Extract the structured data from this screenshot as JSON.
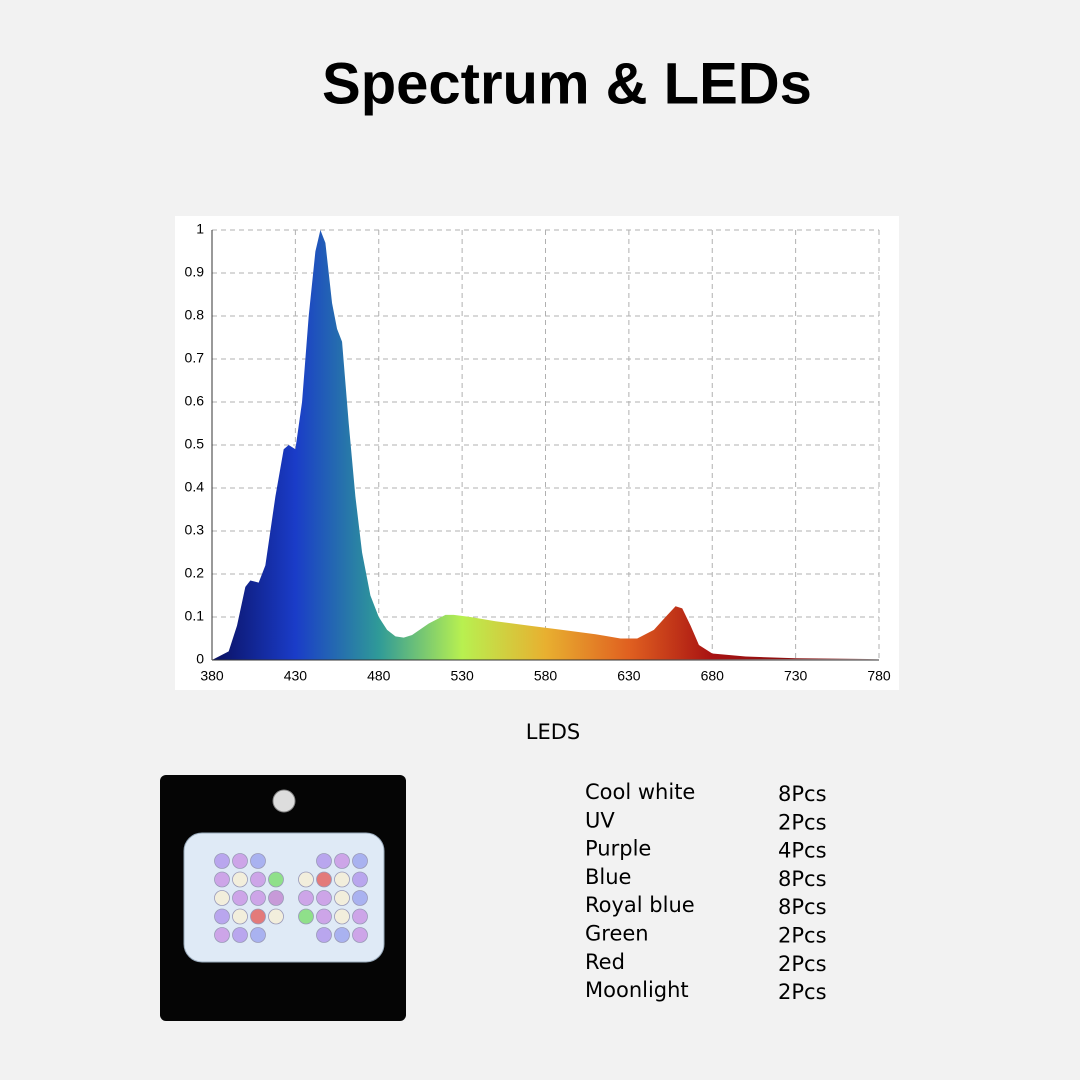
{
  "title": "Spectrum & LEDs",
  "chart_data": {
    "type": "area",
    "x": [
      380,
      390,
      395,
      400,
      403,
      408,
      412,
      418,
      423,
      426,
      430,
      434,
      438,
      442,
      445,
      448,
      452,
      455,
      458,
      462,
      466,
      470,
      475,
      480,
      485,
      490,
      495,
      500,
      510,
      520,
      525,
      535,
      550,
      570,
      590,
      610,
      625,
      635,
      645,
      652,
      658,
      662,
      667,
      672,
      680,
      700,
      730,
      780
    ],
    "values": [
      0,
      0.02,
      0.08,
      0.17,
      0.185,
      0.18,
      0.22,
      0.38,
      0.49,
      0.5,
      0.49,
      0.6,
      0.8,
      0.95,
      1,
      0.97,
      0.83,
      0.77,
      0.74,
      0.55,
      0.38,
      0.25,
      0.15,
      0.1,
      0.07,
      0.055,
      0.052,
      0.058,
      0.085,
      0.105,
      0.105,
      0.1,
      0.09,
      0.08,
      0.07,
      0.06,
      0.05,
      0.05,
      0.07,
      0.1,
      0.125,
      0.12,
      0.08,
      0.035,
      0.015,
      0.008,
      0.004,
      0.002
    ],
    "gradient_colors": [
      "#0a1060",
      "#1a3cc8",
      "#2f9a98",
      "#b8f050",
      "#e8b030",
      "#e06020",
      "#a81212",
      "#8a1010",
      "#801010"
    ],
    "xlim": [
      380,
      780
    ],
    "xticks": [
      380,
      430,
      480,
      530,
      580,
      630,
      680,
      730,
      780
    ],
    "ylim": [
      0,
      1
    ],
    "yticks": [
      0,
      0.1,
      0.2,
      0.3,
      0.4,
      0.5,
      0.6,
      0.7,
      0.8,
      0.9,
      1
    ],
    "grid": true
  },
  "leds": {
    "heading": "LEDS",
    "rows": [
      [
        "Cool white",
        "8Pcs"
      ],
      [
        "UV",
        "2Pcs"
      ],
      [
        "Purple",
        "4Pcs"
      ],
      [
        "Blue",
        "8Pcs"
      ],
      [
        "Royal blue",
        "8Pcs"
      ],
      [
        "Green",
        "2Pcs"
      ],
      [
        "Red",
        "2Pcs"
      ],
      [
        "Moonlight",
        "2Pcs"
      ]
    ]
  }
}
